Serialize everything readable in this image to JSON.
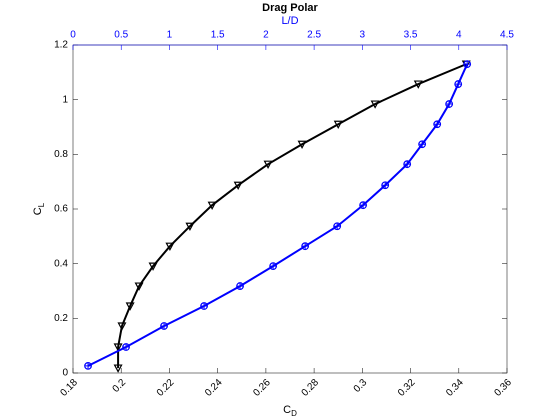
{
  "chart_data": {
    "type": "line",
    "title": "Drag Polar",
    "xlabel": {
      "main": "C",
      "sub": "D"
    },
    "ylabel": {
      "main": "C",
      "sub": "L"
    },
    "x2label": "L/D",
    "xlim": [
      0.18,
      0.36
    ],
    "xticks": [
      0.18,
      0.2,
      0.22,
      0.24,
      0.26,
      0.28,
      0.3,
      0.32,
      0.34,
      0.36
    ],
    "x2lim": [
      0,
      4.5
    ],
    "x2ticks": [
      0,
      0.5,
      1,
      1.5,
      2,
      2.5,
      3,
      3.5,
      4,
      4.5
    ],
    "ylim": [
      0,
      1.2
    ],
    "yticks": [
      0,
      0.2,
      0.4,
      0.6,
      0.8,
      1,
      1.2
    ],
    "x2color": "#0000ff",
    "series": [
      {
        "color": "#000000",
        "marker": "triangle-down",
        "axis": "x",
        "x": [
          0.1987,
          0.1987,
          0.2003,
          0.2037,
          0.2074,
          0.2132,
          0.2202,
          0.2285,
          0.2377,
          0.2485,
          0.2609,
          0.275,
          0.29,
          0.3053,
          0.3232,
          0.3431
        ],
        "values": [
          0.018,
          0.095,
          0.172,
          0.245,
          0.318,
          0.391,
          0.464,
          0.537,
          0.614,
          0.687,
          0.764,
          0.837,
          0.91,
          0.984,
          1.057,
          1.13
        ]
      },
      {
        "color": "#0000ff",
        "marker": "circle-plus",
        "axis": "x2",
        "x": [
          0.156,
          0.55,
          0.944,
          1.359,
          1.732,
          2.075,
          2.407,
          2.739,
          3.008,
          3.237,
          3.465,
          3.62,
          3.776,
          3.9,
          3.994,
          4.087
        ],
        "values": [
          0.026,
          0.095,
          0.172,
          0.245,
          0.318,
          0.391,
          0.464,
          0.537,
          0.614,
          0.687,
          0.764,
          0.837,
          0.91,
          0.984,
          1.057,
          1.13
        ]
      }
    ]
  }
}
